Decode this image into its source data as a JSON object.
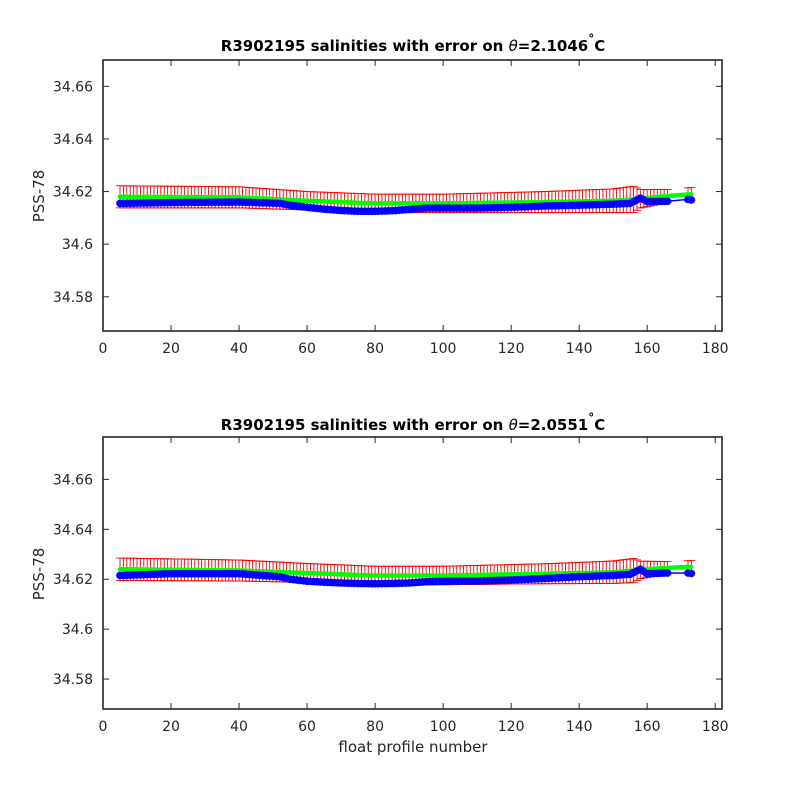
{
  "chart_data": [
    {
      "type": "scatter",
      "title": {
        "main": "R3902195 salinities with error on ",
        "theta": "θ",
        "value": "=2.1046",
        "deg": "°",
        "unit": "C"
      },
      "xlabel": "",
      "ylabel": "PSS-78",
      "xlim": [
        0,
        182
      ],
      "ylim": [
        34.567,
        34.67
      ],
      "xticks": [
        0,
        20,
        40,
        60,
        80,
        100,
        120,
        140,
        160,
        180
      ],
      "yticks": [
        34.58,
        34.6,
        34.62,
        34.64,
        34.66
      ],
      "ytick_labels": [
        "34.58",
        "34.6",
        "34.62",
        "34.64",
        "34.66"
      ],
      "grid": false,
      "profile_range": [
        5,
        166
      ],
      "extra_profiles": [
        172,
        173
      ],
      "series": [
        {
          "role": "measured",
          "color": "#0000ff",
          "profiles": [
            5,
            20,
            40,
            52,
            55,
            60,
            65,
            70,
            75,
            80,
            85,
            90,
            95,
            100,
            110,
            120,
            130,
            140,
            150,
            155,
            158,
            160,
            166,
            172,
            173
          ],
          "values": [
            34.6155,
            34.6158,
            34.616,
            34.6155,
            34.6148,
            34.614,
            34.6133,
            34.6128,
            34.6125,
            34.6125,
            34.6127,
            34.6132,
            34.6137,
            34.6137,
            34.6137,
            34.614,
            34.6145,
            34.6148,
            34.6152,
            34.6155,
            34.6175,
            34.6162,
            34.6163,
            34.617,
            34.6168
          ]
        },
        {
          "role": "calibrated",
          "color": "#00ff00",
          "profiles": [
            5,
            40,
            60,
            80,
            100,
            130,
            150,
            156,
            165,
            173
          ],
          "values": [
            34.618,
            34.6178,
            34.6165,
            34.6155,
            34.6155,
            34.616,
            34.6165,
            34.617,
            34.6182,
            34.619
          ]
        },
        {
          "role": "error",
          "color": "#ff0000",
          "profiles": [
            5,
            40,
            60,
            80,
            100,
            130,
            150,
            156,
            158,
            166,
            172,
            173
          ],
          "half_width": [
            0.0042,
            0.004,
            0.0035,
            0.0035,
            0.0035,
            0.004,
            0.0045,
            0.005,
            0.0035,
            0.0025,
            0.0025,
            0.0025
          ]
        }
      ]
    },
    {
      "type": "scatter",
      "title": {
        "main": "R3902195 salinities with error on ",
        "theta": "θ",
        "value": "=2.0551",
        "deg": "°",
        "unit": "C"
      },
      "xlabel": "float profile number",
      "ylabel": "PSS-78",
      "xlim": [
        0,
        182
      ],
      "ylim": [
        34.568,
        34.677
      ],
      "xticks": [
        0,
        20,
        40,
        60,
        80,
        100,
        120,
        140,
        160,
        180
      ],
      "yticks": [
        34.58,
        34.6,
        34.62,
        34.64,
        34.66
      ],
      "ytick_labels": [
        "34.58",
        "34.6",
        "34.62",
        "34.64",
        "34.66"
      ],
      "grid": false,
      "profile_range": [
        5,
        166
      ],
      "extra_profiles": [
        172,
        173
      ],
      "series": [
        {
          "role": "measured",
          "color": "#0000ff",
          "profiles": [
            5,
            20,
            40,
            52,
            55,
            60,
            65,
            70,
            75,
            80,
            85,
            90,
            95,
            100,
            110,
            120,
            130,
            140,
            150,
            155,
            158,
            160,
            166,
            172,
            173
          ],
          "values": [
            34.6215,
            34.6222,
            34.6222,
            34.621,
            34.62,
            34.6192,
            34.6188,
            34.6185,
            34.6183,
            34.6182,
            34.6183,
            34.6185,
            34.619,
            34.6192,
            34.6193,
            34.6197,
            34.6203,
            34.621,
            34.6215,
            34.622,
            34.624,
            34.6222,
            34.6225,
            34.6225,
            34.6223
          ]
        },
        {
          "role": "calibrated",
          "color": "#00ff00",
          "profiles": [
            5,
            40,
            60,
            80,
            100,
            130,
            150,
            156,
            165,
            173
          ],
          "values": [
            34.624,
            34.6235,
            34.6225,
            34.6215,
            34.6215,
            34.6222,
            34.6228,
            34.6235,
            34.6245,
            34.625
          ]
        },
        {
          "role": "error",
          "color": "#ff0000",
          "profiles": [
            5,
            40,
            60,
            80,
            100,
            130,
            150,
            156,
            158,
            166,
            172,
            173
          ],
          "half_width": [
            0.0045,
            0.0042,
            0.0038,
            0.0037,
            0.0037,
            0.004,
            0.0045,
            0.0048,
            0.0035,
            0.0025,
            0.0025,
            0.0025
          ]
        }
      ]
    }
  ]
}
